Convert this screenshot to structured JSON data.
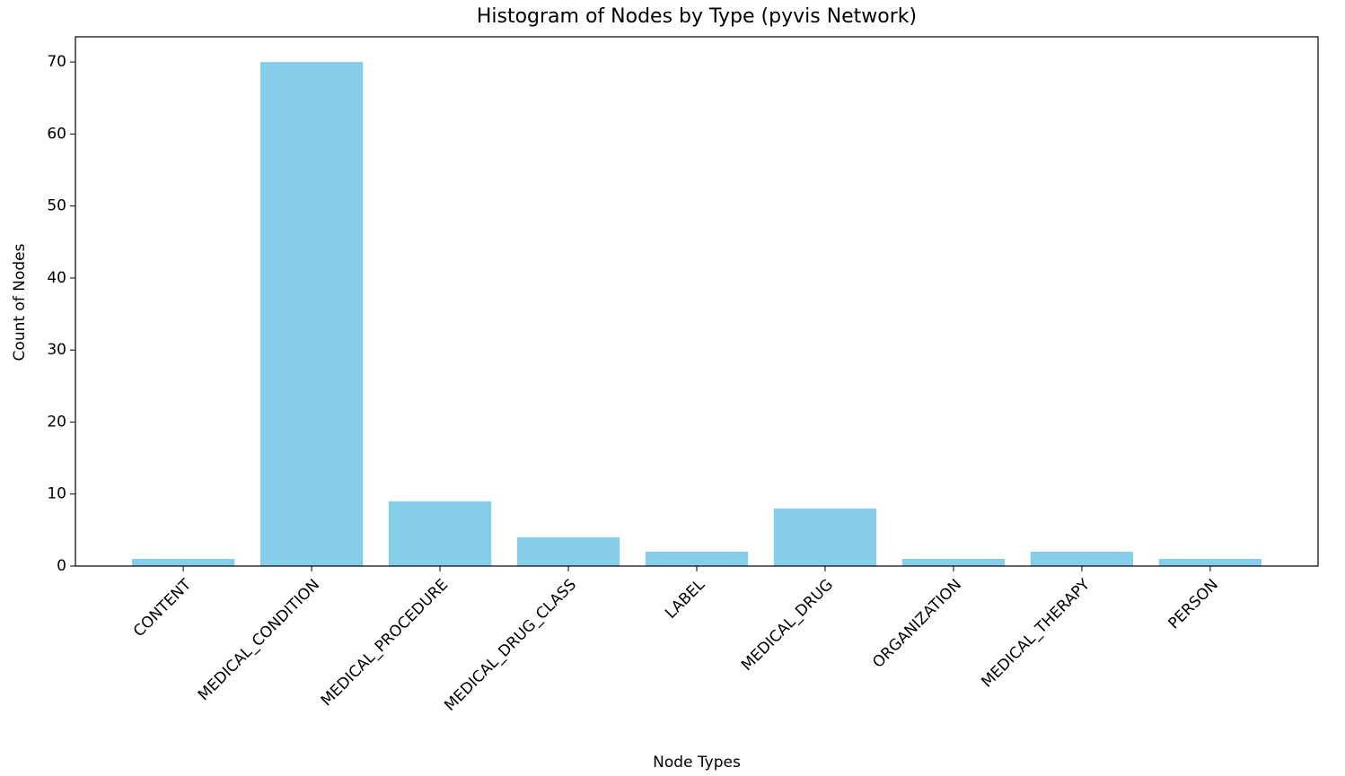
{
  "chart_data": {
    "type": "bar",
    "title": "Histogram of Nodes by Type (pyvis Network)",
    "x_label": "Node Types",
    "y_label": "Count of Nodes",
    "categories": [
      "CONTENT",
      "MEDICAL_CONDITION",
      "MEDICAL_PROCEDURE",
      "MEDICAL_DRUG_CLASS",
      "LABEL",
      "MEDICAL_DRUG",
      "ORGANIZATION",
      "MEDICAL_THERAPY",
      "PERSON"
    ],
    "values": [
      1,
      70,
      9,
      4,
      2,
      8,
      1,
      2,
      1
    ],
    "color": "#87ceeb",
    "ylim": [
      0,
      73.5
    ],
    "yticks": [
      0,
      10,
      20,
      30,
      40,
      50,
      60,
      70
    ],
    "grid": false
  }
}
